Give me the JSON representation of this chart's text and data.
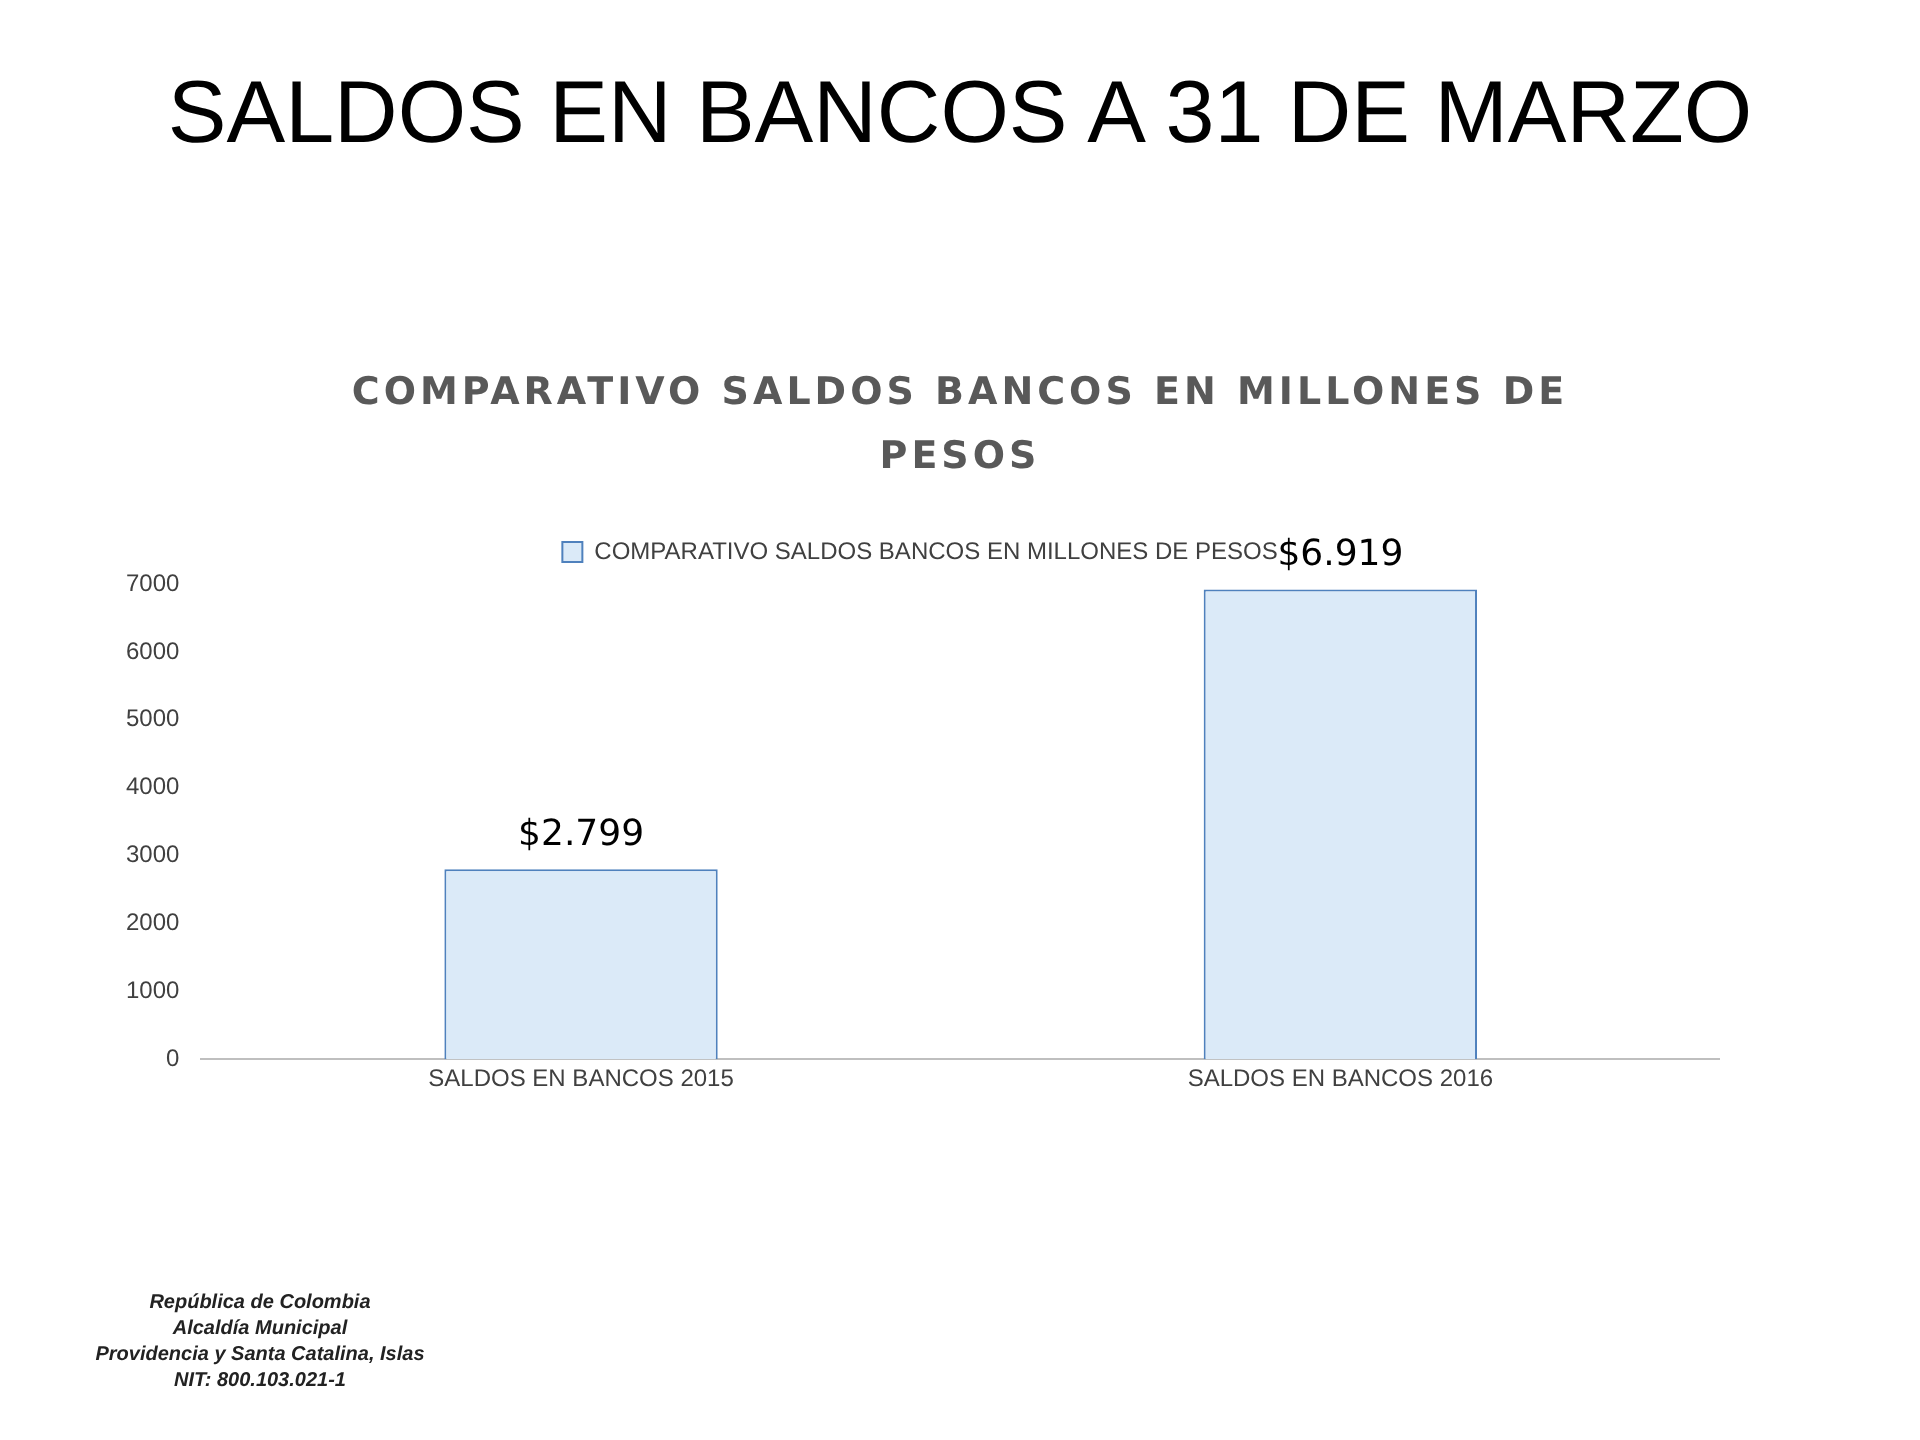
{
  "chart_data": {
    "type": "bar",
    "title": "SALDOS EN BANCOS A 31 DE MARZO",
    "subtitle": "COMPARATIVO SALDOS BANCOS EN MILLONES DE PESOS",
    "categories": [
      "SALDOS EN BANCOS 2015",
      "SALDOS EN BANCOS 2016"
    ],
    "series": [
      {
        "name": "COMPARATIVO SALDOS BANCOS EN MILLONES DE PESOS",
        "color": "#dbeaf8",
        "values": [
          2799,
          6919
        ],
        "value_labels": [
          "$2.799",
          "$6.919"
        ]
      }
    ],
    "ylim": [
      0,
      7000
    ],
    "yticks": [
      0,
      1000,
      2000,
      3000,
      4000,
      5000,
      6000,
      7000
    ],
    "grid": false,
    "legend": "top",
    "annotations": [
      "República de Colombia",
      "Alcaldía Municipal",
      "Providencia y Santa Catalina, Islas",
      "NIT: 800.103.021-1"
    ]
  }
}
